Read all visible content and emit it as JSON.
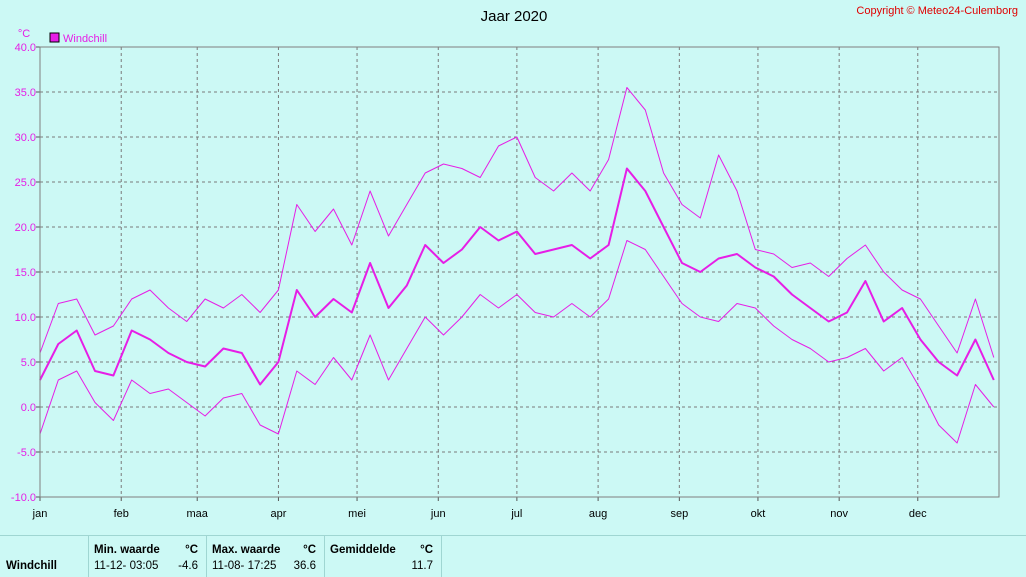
{
  "header": {
    "title": "Jaar 2020",
    "copyright": "Copyright © Meteo24-Culemborg"
  },
  "chart_data": {
    "type": "line",
    "title": "Jaar 2020",
    "ylabel": "°C",
    "ylim": [
      -10,
      40
    ],
    "yticks": [
      "-10.0",
      "-5.0",
      "0.0",
      "5.0",
      "10.0",
      "15.0",
      "20.0",
      "25.0",
      "30.0",
      "35.0",
      "40.0"
    ],
    "categories": [
      "jan",
      "feb",
      "maa",
      "apr",
      "mei",
      "jun",
      "jul",
      "aug",
      "sep",
      "okt",
      "nov",
      "dec"
    ],
    "legend": {
      "entries": [
        "Windchill"
      ],
      "placement": "top-left"
    },
    "grid": true,
    "colors": {
      "series": "#e61ee6",
      "background": "#ccf9f5",
      "grid": "#7a7a7a",
      "axis_text": "#000000"
    },
    "x_unit": "day_of_year",
    "series": [
      {
        "name": "Windchill",
        "role": "daily_mean",
        "x": [
          1,
          8,
          15,
          22,
          29,
          36,
          43,
          50,
          57,
          64,
          71,
          78,
          85,
          92,
          99,
          106,
          113,
          120,
          127,
          134,
          141,
          148,
          155,
          162,
          169,
          176,
          183,
          190,
          197,
          204,
          211,
          218,
          225,
          232,
          239,
          246,
          253,
          260,
          267,
          274,
          281,
          288,
          295,
          302,
          309,
          316,
          323,
          330,
          337,
          344,
          351,
          358,
          365
        ],
        "values": [
          3.0,
          7.0,
          8.5,
          4.0,
          3.5,
          8.5,
          7.5,
          6.0,
          5.0,
          4.5,
          6.5,
          6.0,
          2.5,
          5.0,
          13.0,
          10.0,
          12.0,
          10.5,
          16.0,
          11.0,
          13.5,
          18.0,
          16.0,
          17.5,
          20.0,
          18.5,
          19.5,
          17.0,
          17.5,
          18.0,
          16.5,
          18.0,
          26.5,
          24.0,
          20.0,
          16.0,
          15.0,
          16.5,
          17.0,
          15.5,
          14.5,
          12.5,
          11.0,
          9.5,
          10.5,
          14.0,
          9.5,
          11.0,
          7.5,
          5.0,
          3.5,
          7.5,
          3.0
        ]
      },
      {
        "name": "Windchill",
        "role": "daily_max",
        "x": [
          1,
          8,
          15,
          22,
          29,
          36,
          43,
          50,
          57,
          64,
          71,
          78,
          85,
          92,
          99,
          106,
          113,
          120,
          127,
          134,
          141,
          148,
          155,
          162,
          169,
          176,
          183,
          190,
          197,
          204,
          211,
          218,
          225,
          232,
          239,
          246,
          253,
          260,
          267,
          274,
          281,
          288,
          295,
          302,
          309,
          316,
          323,
          330,
          337,
          344,
          351,
          358,
          365
        ],
        "values": [
          6.0,
          11.5,
          12.0,
          8.0,
          9.0,
          12.0,
          13.0,
          11.0,
          9.5,
          12.0,
          11.0,
          12.5,
          10.5,
          13.0,
          22.5,
          19.5,
          22.0,
          18.0,
          24.0,
          19.0,
          22.5,
          26.0,
          27.0,
          26.5,
          25.5,
          29.0,
          30.0,
          25.5,
          24.0,
          26.0,
          24.0,
          27.5,
          35.5,
          33.0,
          26.0,
          22.5,
          21.0,
          28.0,
          24.0,
          17.5,
          17.0,
          15.5,
          16.0,
          14.5,
          16.5,
          18.0,
          15.0,
          13.0,
          12.0,
          9.0,
          6.0,
          12.0,
          5.5
        ]
      },
      {
        "name": "Windchill",
        "role": "daily_min",
        "x": [
          1,
          8,
          15,
          22,
          29,
          36,
          43,
          50,
          57,
          64,
          71,
          78,
          85,
          92,
          99,
          106,
          113,
          120,
          127,
          134,
          141,
          148,
          155,
          162,
          169,
          176,
          183,
          190,
          197,
          204,
          211,
          218,
          225,
          232,
          239,
          246,
          253,
          260,
          267,
          274,
          281,
          288,
          295,
          302,
          309,
          316,
          323,
          330,
          337,
          344,
          351,
          358,
          365
        ],
        "values": [
          -3.0,
          3.0,
          4.0,
          0.5,
          -1.5,
          3.0,
          1.5,
          2.0,
          0.5,
          -1.0,
          1.0,
          1.5,
          -2.0,
          -3.0,
          4.0,
          2.5,
          5.5,
          3.0,
          8.0,
          3.0,
          6.5,
          10.0,
          8.0,
          10.0,
          12.5,
          11.0,
          12.5,
          10.5,
          10.0,
          11.5,
          10.0,
          12.0,
          18.5,
          17.5,
          14.5,
          11.5,
          10.0,
          9.5,
          11.5,
          11.0,
          9.0,
          7.5,
          6.5,
          5.0,
          5.5,
          6.5,
          4.0,
          5.5,
          2.0,
          -2.0,
          -4.0,
          2.5,
          0.0
        ]
      }
    ]
  },
  "stats": {
    "row_label": "Windchill",
    "min_header": "Min. waarde",
    "min_unit": "°C",
    "min_time": "11-12-  03:05",
    "min_value": "-4.6",
    "max_header": "Max. waarde",
    "max_unit": "°C",
    "max_time": "11-08-  17:25",
    "max_value": "36.6",
    "avg_header": "Gemiddelde",
    "avg_unit": "°C",
    "avg_value": "11.7"
  }
}
